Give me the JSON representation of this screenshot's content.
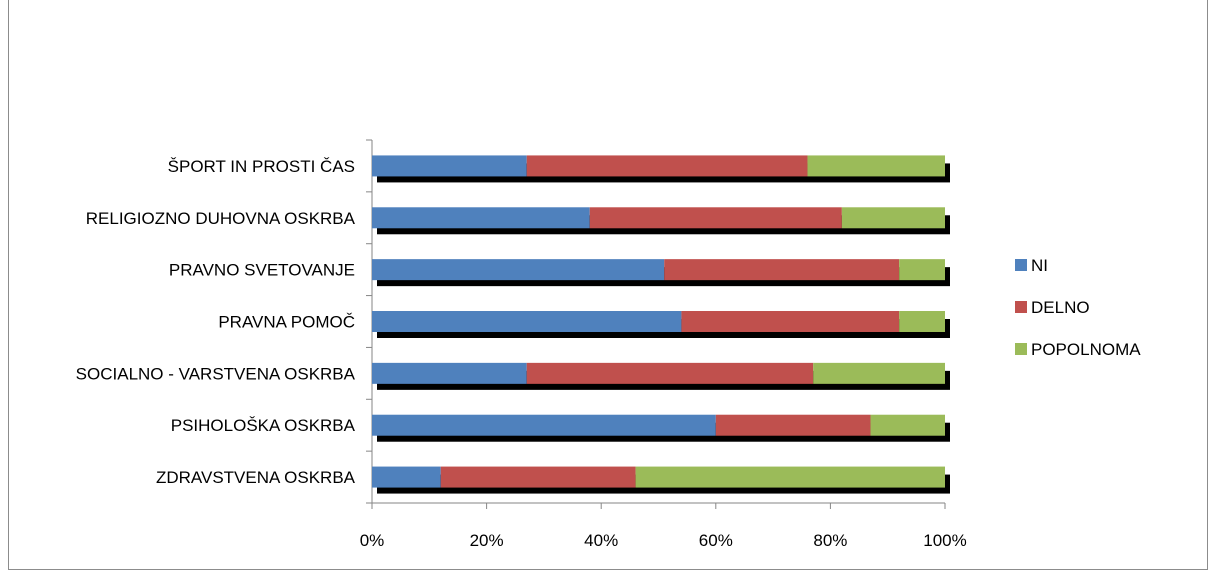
{
  "chart_data": {
    "type": "bar",
    "orientation": "horizontal",
    "stacked": "percent",
    "categories": [
      "ŠPORT IN PROSTI ČAS",
      "RELIGIOZNO DUHOVNA OSKRBA",
      "PRAVNO SVETOVANJE",
      "PRAVNA POMOČ",
      "SOCIALNO - VARSTVENA OSKRBA",
      "PSIHOLOŠKA OSKRBA",
      "ZDRAVSTVENA OSKRBA"
    ],
    "series": [
      {
        "name": "NI",
        "color": "#4F81BD",
        "values": [
          27,
          38,
          51,
          54,
          27,
          60,
          12
        ]
      },
      {
        "name": "DELNO",
        "color": "#C0504D",
        "values": [
          49,
          44,
          41,
          38,
          50,
          27,
          34
        ]
      },
      {
        "name": "POPOLNOMA",
        "color": "#9BBB59",
        "values": [
          24,
          18,
          8,
          8,
          23,
          13,
          54
        ]
      }
    ],
    "x_ticks": [
      "0%",
      "20%",
      "40%",
      "60%",
      "80%",
      "100%"
    ],
    "xlim": [
      0,
      100
    ],
    "legend_position": "right",
    "grid": false
  }
}
